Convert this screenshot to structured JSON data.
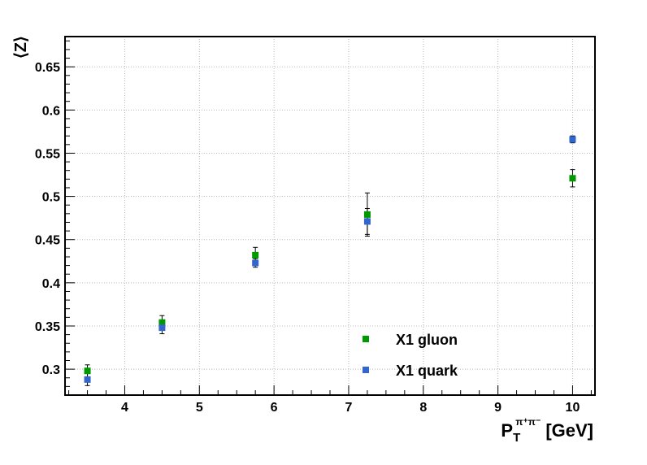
{
  "chart_data": {
    "type": "scatter",
    "title": "",
    "xlabel": {
      "main": "P",
      "sub": "T",
      "sup": "π⁺π⁻",
      "unit": "[GeV]"
    },
    "ylabel": "⟨Z⟩",
    "xlim": [
      3.2,
      10.3
    ],
    "ylim": [
      0.27,
      0.685
    ],
    "x_ticks": [
      4,
      5,
      6,
      7,
      8,
      9,
      10
    ],
    "y_ticks": [
      0.3,
      0.35,
      0.4,
      0.45,
      0.5,
      0.55,
      0.6,
      0.65
    ],
    "y_tick_labels": [
      "0.3",
      "0.35",
      "0.4",
      "0.45",
      "0.5",
      "0.55",
      "0.6",
      "0.65"
    ],
    "grid": true,
    "legend_position": "bottom-right",
    "series": [
      {
        "name": "X1 gluon",
        "color": "#009900",
        "marker": "square",
        "x": [
          3.5,
          4.5,
          5.75,
          7.25,
          10.0
        ],
        "y": [
          0.298,
          0.354,
          0.432,
          0.479,
          0.521
        ],
        "yerr": [
          0.007,
          0.008,
          0.009,
          0.025,
          0.01
        ]
      },
      {
        "name": "X1 quark",
        "color": "#3366cc",
        "marker": "square",
        "x": [
          3.5,
          4.5,
          5.75,
          7.25,
          10.0
        ],
        "y": [
          0.288,
          0.348,
          0.423,
          0.471,
          0.566
        ],
        "yerr": [
          0.007,
          0.007,
          0.005,
          0.015,
          0.004
        ]
      }
    ]
  }
}
